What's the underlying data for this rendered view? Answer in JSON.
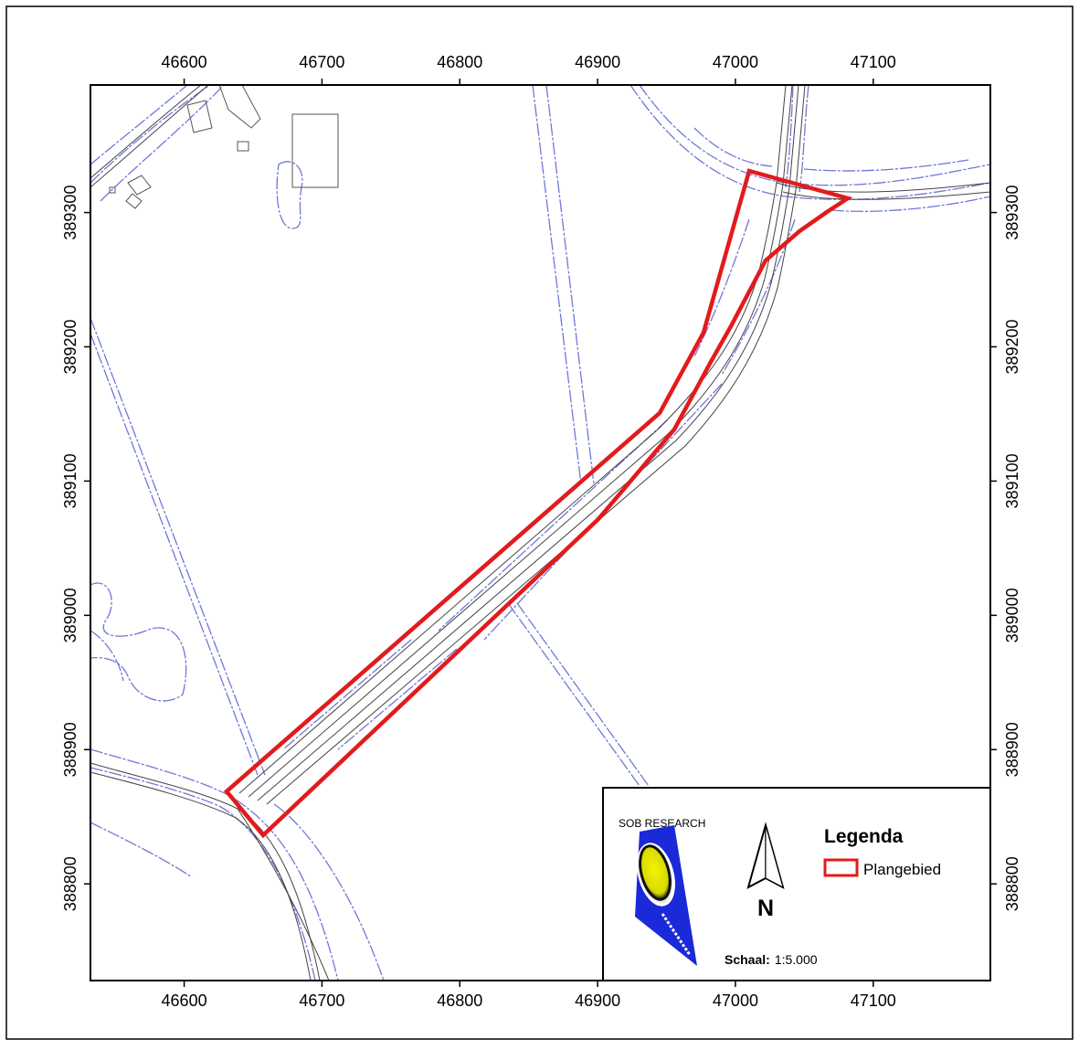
{
  "map": {
    "x_ticks": [
      "46600",
      "46700",
      "46800",
      "46900",
      "47000",
      "47100"
    ],
    "y_ticks": [
      "389300",
      "389200",
      "389100",
      "389000",
      "388900",
      "388800"
    ],
    "x_range": [
      46532,
      47185
    ],
    "y_range": [
      388728,
      389395
    ],
    "colors": {
      "plan_outline": "#e31a1c",
      "water_lines": "#6e78d8",
      "road_lines": "#444444",
      "frame": "#000000"
    }
  },
  "legend": {
    "title": "Legenda",
    "items": [
      {
        "label": "Plangebied",
        "swatch_color": "#e31a1c"
      }
    ],
    "logo_text": "SOB RESEARCH",
    "north_label": "N",
    "scale_label": "Schaal:",
    "scale_value": "1:5.000"
  }
}
